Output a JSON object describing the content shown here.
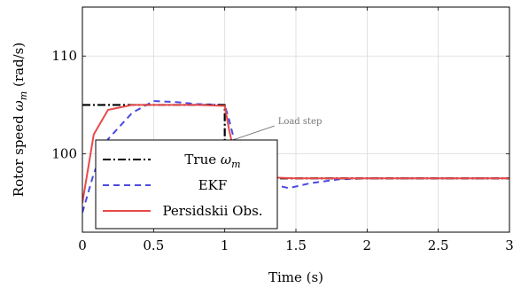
{
  "chart_data": {
    "type": "line",
    "title": "",
    "xlabel": "Time (s)",
    "ylabel": "Rotor speed ω_m  (rad/s)",
    "xlim": [
      0,
      3
    ],
    "ylim": [
      92,
      115
    ],
    "xticks": [
      "0",
      "0.5",
      "1",
      "1.5",
      "2",
      "2.5",
      "3"
    ],
    "xtick_values": [
      0,
      0.5,
      1,
      1.5,
      2,
      2.5,
      3
    ],
    "yticks": [
      "100",
      "110"
    ],
    "ytick_values": [
      100,
      110
    ],
    "grid": true,
    "legend_position": "lower-left",
    "annotation": {
      "text": "Load step",
      "x": 1.05,
      "y": 101.5
    },
    "series": [
      {
        "name": "True ω_m",
        "color": "#000000",
        "style": "dash-dot",
        "x": [
          0,
          1.0,
          1.0,
          3.0
        ],
        "y": [
          105,
          105,
          97.5,
          97.5
        ]
      },
      {
        "name": "EKF",
        "color": "#4a4ae0",
        "style": "dashed",
        "x": [
          0,
          0.08,
          0.18,
          0.35,
          0.5,
          0.65,
          0.8,
          1.0,
          1.03,
          1.1,
          1.2,
          1.3,
          1.45,
          1.6,
          1.8,
          2.0,
          2.5,
          3.0
        ],
        "y": [
          94,
          98,
          101.5,
          104.2,
          105.4,
          105.3,
          105.1,
          105.0,
          103.5,
          99.5,
          97.5,
          97.0,
          96.5,
          97.0,
          97.4,
          97.5,
          97.5,
          97.5
        ]
      },
      {
        "name": "Persidskii Obs.",
        "color": "#e84a4a",
        "style": "solid",
        "x": [
          0,
          0.08,
          0.18,
          0.35,
          0.5,
          0.8,
          1.0,
          1.03,
          1.06,
          1.1,
          1.15,
          1.3,
          1.5,
          2.0,
          3.0
        ],
        "y": [
          95,
          102,
          104.5,
          105.0,
          105.0,
          105.0,
          104.9,
          102.5,
          100.5,
          99.0,
          98.0,
          97.6,
          97.5,
          97.5,
          97.5
        ]
      }
    ]
  }
}
